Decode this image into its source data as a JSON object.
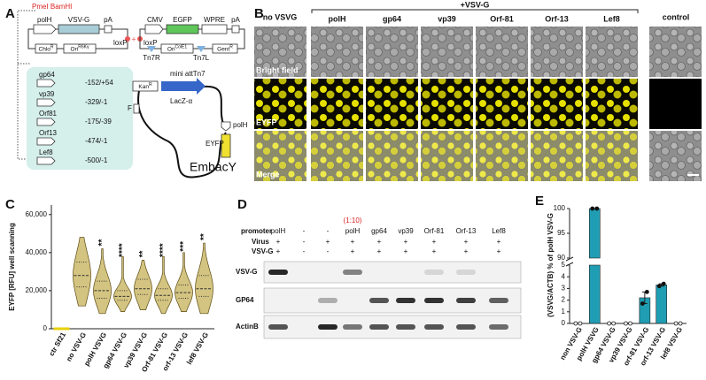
{
  "panel_labels": [
    "A",
    "B",
    "C",
    "D",
    "E"
  ],
  "diagram": {
    "sites": "PmeI BamHI",
    "polh": "polH",
    "vsvg": "VSV-G",
    "pa1": "pA",
    "chlo": "Chlo",
    "chlo_sup": "R",
    "ori1": "Ori",
    "ori1_sup": "R6Kγ",
    "loxp1": "loxP",
    "loxp2": "loxP",
    "cmv": "CMV",
    "egfp": "EGFP",
    "wpre": "WPRE",
    "pa2": "pA",
    "tn7r": "Tn7R",
    "ori2": "Ori",
    "ori2_sup": "ColE1",
    "tn7l": "Tn7L",
    "gent": "Gent",
    "gent_sup": "R",
    "promoters": [
      {
        "name": "gp64",
        "range": "-152/+54"
      },
      {
        "name": "vp39",
        "range": "-329/-1"
      },
      {
        "name": "Orf81",
        "range": "-175/-39"
      },
      {
        "name": "Orf13",
        "range": "-474/-1"
      },
      {
        "name": "Lef8",
        "range": "-500/-1"
      }
    ],
    "kan": "Kan",
    "kan_sup": "R",
    "att": "mini attTn7",
    "lacz": "LacZ-α",
    "f": "F",
    "polh2": "polH",
    "eyfp": "EYFP",
    "bacmid": "EmbacY"
  },
  "micrographs": {
    "no_vsvg": "no VSVG",
    "plus": "+VSV-G",
    "columns": [
      "polH",
      "gp64",
      "vp39",
      "Orf-81",
      "Orf-13",
      "Lef8"
    ],
    "control": "control",
    "rows": [
      "Bright field",
      "EYFP",
      "Merge"
    ]
  },
  "blot": {
    "dilution": "(1:10)",
    "row_labels": [
      "promoter",
      "Virus",
      "VSV-G"
    ],
    "promoter": [
      "polH",
      "-",
      "-",
      "polH",
      "gp64",
      "vp39",
      "Orf-81",
      "Orf-13",
      "Lef8"
    ],
    "virus": [
      "+",
      "-",
      "+",
      "+",
      "+",
      "+",
      "+",
      "+",
      "+"
    ],
    "vsvg": [
      "+",
      "-",
      "-",
      "+",
      "+",
      "+",
      "+",
      "+",
      "+"
    ],
    "bands": [
      "VSV-G",
      "GP64",
      "ActinB"
    ]
  },
  "chart_data": [
    {
      "type": "violin",
      "ylabel": "EYFP [RFU] well scanning",
      "categories": [
        "ctr Sf21",
        "no VSV-G",
        "polH VSVG",
        "gp64 VSV-G",
        "vp39 VSV-G",
        "Orf-81 VSV-G",
        "orf-13 VSV-G",
        "lef8 VSV-G"
      ],
      "min": [
        0,
        12000,
        8000,
        9000,
        10000,
        8000,
        9000,
        8000
      ],
      "q1": [
        0,
        22000,
        16000,
        15000,
        18000,
        15000,
        16000,
        17000
      ],
      "median": [
        0,
        28000,
        20000,
        17000,
        21000,
        17500,
        19000,
        21000
      ],
      "q3": [
        0,
        35000,
        25000,
        20000,
        26000,
        21000,
        23000,
        28000
      ],
      "max": [
        0,
        48000,
        42000,
        38000,
        36000,
        38000,
        40000,
        45000
      ],
      "annotations": [
        null,
        null,
        "**",
        "****",
        "**",
        "****",
        "***",
        "**"
      ],
      "color": "#c9b562",
      "ctr_color": "#e8d000",
      "ylim": [
        0,
        65000
      ],
      "yticks": [
        0,
        {
          "value": 20000,
          "label": "20,000"
        },
        {
          "value": 40000,
          "label": "40,000"
        },
        {
          "value": 60000,
          "label": "60,000"
        }
      ]
    },
    {
      "type": "bar",
      "ylabel": "(VSVG/ACTB) % of polH VSV-G",
      "categories": [
        "non VSV-G",
        "polH VSVG",
        "gp64 VSV-G",
        "vp39 VSV-G",
        "orf-81 VSV-G",
        "orf-13 VSV-G",
        "lef8 VSV-G"
      ],
      "values": [
        0,
        100,
        0,
        0,
        2.2,
        3.3,
        0
      ],
      "errors": [
        0,
        0,
        0,
        0,
        0.5,
        0.1,
        0
      ],
      "points": [
        [
          0,
          0
        ],
        [
          100,
          100
        ],
        [
          0,
          0
        ],
        [
          0,
          0
        ],
        [
          1.7,
          2.7
        ],
        [
          3.2,
          3.4
        ],
        [
          0,
          0
        ]
      ],
      "color": "#1f9db3",
      "ylim": [
        0,
        100
      ],
      "ybreak": [
        5,
        90
      ],
      "yticks": [
        0,
        1,
        2,
        3,
        4,
        5,
        90,
        95,
        100
      ]
    }
  ]
}
